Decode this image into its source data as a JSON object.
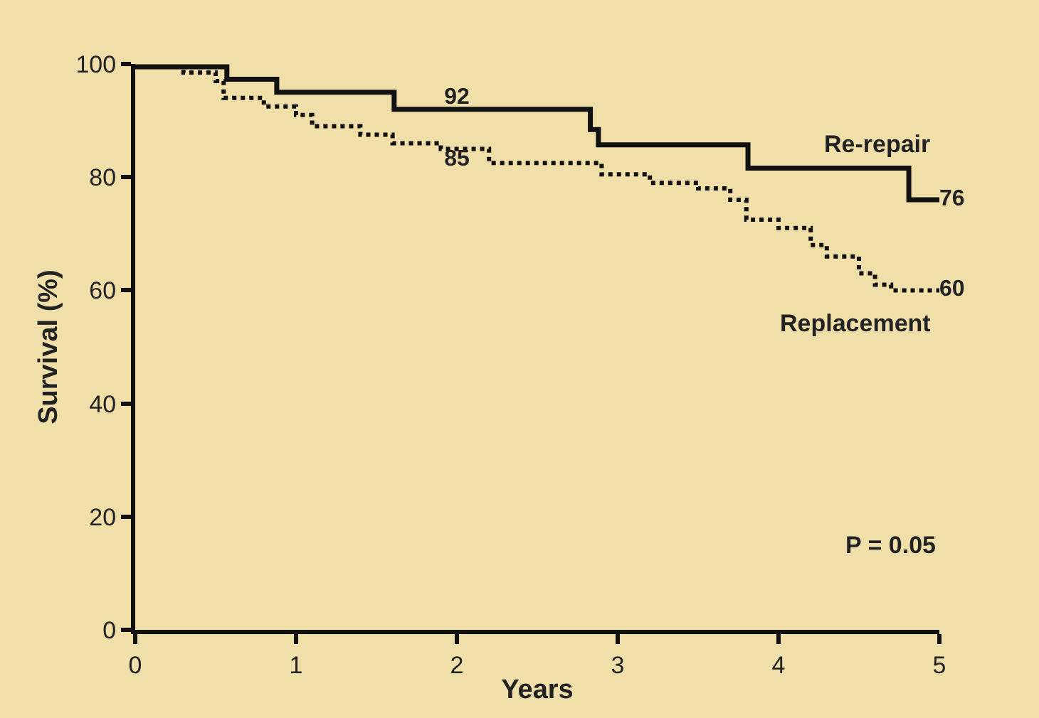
{
  "chart_data": {
    "type": "step",
    "xlabel": "Years",
    "ylabel": "Survival (%)",
    "xlim": [
      0,
      5
    ],
    "xticks": [
      0,
      1,
      2,
      3,
      4,
      5
    ],
    "ylim": [
      0,
      100
    ],
    "yticks": [
      0,
      20,
      40,
      60,
      80,
      100
    ],
    "grid": false,
    "legend": false,
    "marker": "none",
    "series": [
      {
        "name": "Re-repair",
        "color": "#111111",
        "line_style": "solid",
        "x": [
          0,
          0.57,
          0.88,
          1.61,
          2,
          2.83,
          2.88,
          3.81,
          4.81,
          5
        ],
        "values": [
          99.5,
          97.3,
          95,
          92,
          92,
          88.4,
          85.7,
          81.6,
          76,
          76
        ],
        "value_labels": [
          null,
          null,
          null,
          null,
          "92",
          null,
          null,
          null,
          null,
          "76"
        ]
      },
      {
        "name": "Replacement",
        "color": "#111111",
        "line_style": "dotted",
        "x": [
          0,
          0.3,
          0.5,
          0.55,
          0.8,
          1.0,
          1.1,
          1.4,
          1.6,
          1.9,
          2,
          2.2,
          2.8,
          2.9,
          3.2,
          3.5,
          3.7,
          3.8,
          4.0,
          4.2,
          4.3,
          4.5,
          4.6,
          4.7,
          5
        ],
        "values": [
          99.5,
          98.5,
          97,
          94,
          92.5,
          91,
          89,
          87.5,
          86,
          85,
          85,
          82.5,
          82.5,
          80.5,
          79,
          78,
          76,
          72.5,
          71,
          68,
          66,
          63,
          61,
          60,
          60
        ],
        "value_labels": [
          null,
          null,
          null,
          null,
          null,
          null,
          null,
          null,
          null,
          null,
          "85",
          null,
          null,
          null,
          null,
          null,
          null,
          null,
          null,
          null,
          null,
          null,
          null,
          null,
          "60"
        ]
      }
    ],
    "annotations": [
      "P = 0.05"
    ]
  }
}
